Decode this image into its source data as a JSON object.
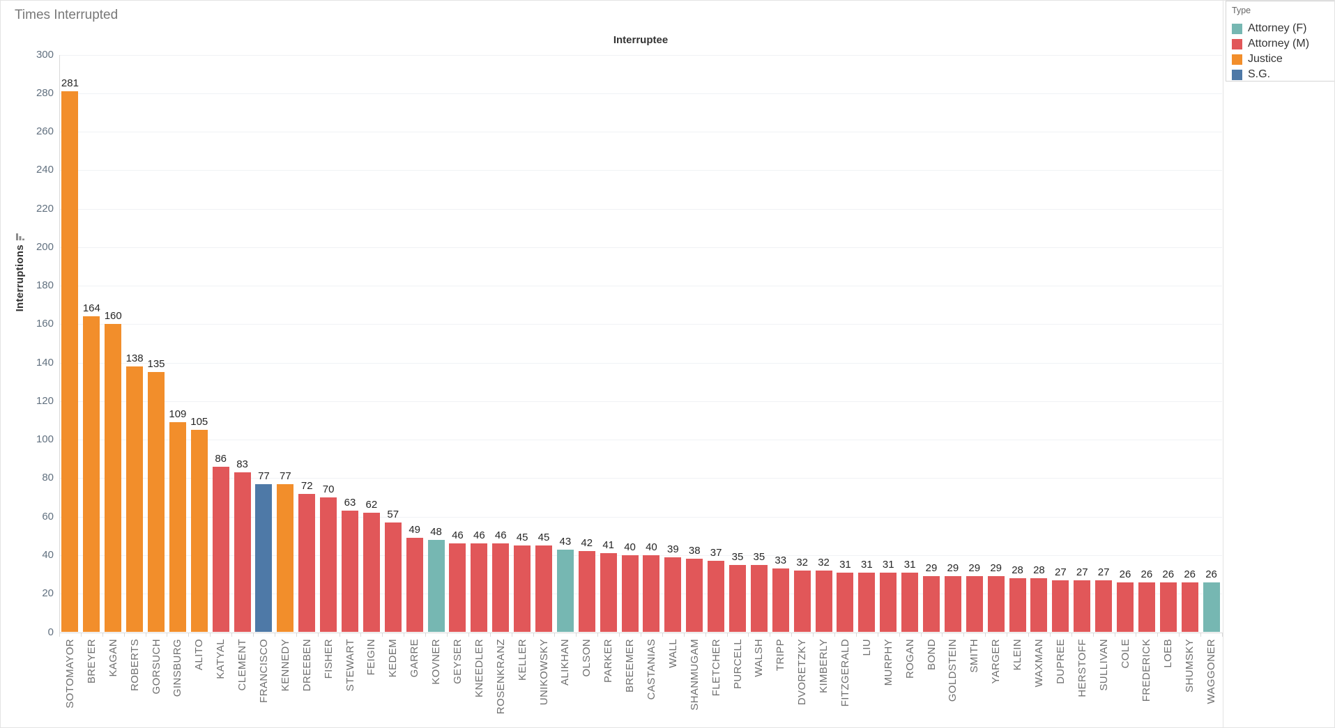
{
  "title": "Times Interrupted",
  "legend": {
    "title": "Type",
    "items": [
      {
        "label": "Attorney (F)",
        "color": "#76B7B2"
      },
      {
        "label": "Attorney (M)",
        "color": "#E15759"
      },
      {
        "label": "Justice",
        "color": "#F28E2B"
      },
      {
        "label": "S.G.",
        "color": "#4E79A7"
      }
    ]
  },
  "chart_data": {
    "type": "bar",
    "title": "Interruptee",
    "xlabel": "",
    "ylabel": "Interruptions",
    "ylim": [
      0,
      300
    ],
    "yticks": [
      0,
      20,
      40,
      60,
      80,
      100,
      120,
      140,
      160,
      180,
      200,
      220,
      240,
      260,
      280,
      300
    ],
    "grid": true,
    "sort": "descending",
    "legend_position": "top-right",
    "value_labels": true,
    "categories": [
      "SOTOMAYOR",
      "BREYER",
      "KAGAN",
      "ROBERTS",
      "GORSUCH",
      "GINSBURG",
      "ALITO",
      "KATYAL",
      "CLEMENT",
      "FRANCISCO",
      "KENNEDY",
      "DREEBEN",
      "FISHER",
      "STEWART",
      "FEIGIN",
      "KEDEM",
      "GARRE",
      "KOVNER",
      "GEYSER",
      "KNEEDLER",
      "ROSENKRANZ",
      "KELLER",
      "UNIKOWSKY",
      "ALIKHAN",
      "OLSON",
      "PARKER",
      "BREEMER",
      "CASTANIAS",
      "WALL",
      "SHANMUGAM",
      "FLETCHER",
      "PURCELL",
      "WALSH",
      "TRIPP",
      "DVORETZKY",
      "KIMBERLY",
      "FITZGERALD",
      "LIU",
      "MURPHY",
      "ROGAN",
      "BOND",
      "GOLDSTEIN",
      "SMITH",
      "YARGER",
      "KLEIN",
      "WAXMAN",
      "DUPREE",
      "HERSTOFF",
      "SULLIVAN",
      "COLE",
      "FREDERICK",
      "LOEB",
      "SHUMSKY",
      "WAGGONER"
    ],
    "values": [
      281,
      164,
      160,
      138,
      135,
      109,
      105,
      86,
      83,
      77,
      77,
      72,
      70,
      63,
      62,
      57,
      49,
      48,
      46,
      46,
      46,
      45,
      45,
      43,
      42,
      41,
      40,
      40,
      39,
      38,
      37,
      35,
      35,
      33,
      32,
      32,
      31,
      31,
      31,
      31,
      29,
      29,
      29,
      29,
      28,
      28,
      27,
      27,
      27,
      26,
      26,
      26,
      26,
      26
    ],
    "types": [
      "Justice",
      "Justice",
      "Justice",
      "Justice",
      "Justice",
      "Justice",
      "Justice",
      "Attorney (M)",
      "Attorney (M)",
      "S.G.",
      "Justice",
      "Attorney (M)",
      "Attorney (M)",
      "Attorney (M)",
      "Attorney (M)",
      "Attorney (M)",
      "Attorney (M)",
      "Attorney (F)",
      "Attorney (M)",
      "Attorney (M)",
      "Attorney (M)",
      "Attorney (M)",
      "Attorney (M)",
      "Attorney (F)",
      "Attorney (M)",
      "Attorney (M)",
      "Attorney (M)",
      "Attorney (M)",
      "Attorney (M)",
      "Attorney (M)",
      "Attorney (M)",
      "Attorney (M)",
      "Attorney (M)",
      "Attorney (M)",
      "Attorney (M)",
      "Attorney (M)",
      "Attorney (M)",
      "Attorney (M)",
      "Attorney (M)",
      "Attorney (M)",
      "Attorney (M)",
      "Attorney (M)",
      "Attorney (M)",
      "Attorney (M)",
      "Attorney (M)",
      "Attorney (M)",
      "Attorney (M)",
      "Attorney (M)",
      "Attorney (M)",
      "Attorney (M)",
      "Attorney (M)",
      "Attorney (M)",
      "Attorney (M)",
      "Attorney (F)"
    ]
  }
}
